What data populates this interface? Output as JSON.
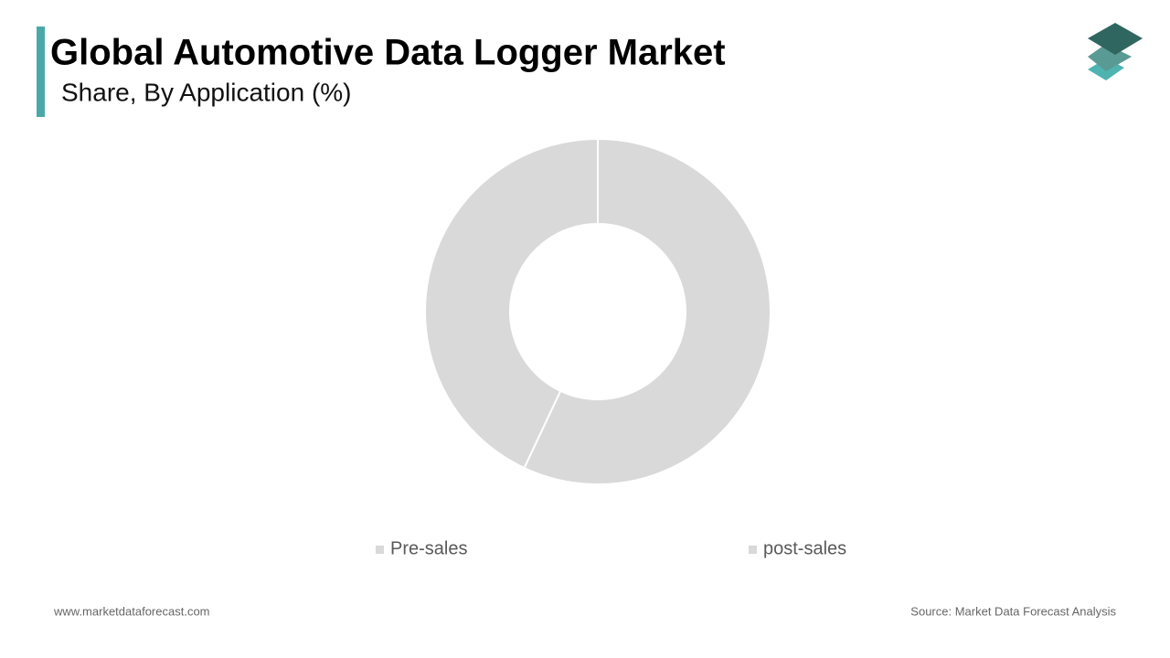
{
  "chart_data": {
    "type": "donut",
    "title": "Global Automotive Data Logger Market",
    "subtitle": "Share, By Application (%)",
    "categories": [
      "Pre-sales",
      "post-sales"
    ],
    "values": [
      57,
      43
    ],
    "colors": [
      "#d9d9d9",
      "#d9d9d9"
    ],
    "legend": "bottom",
    "footer_left": "www.marketdataforecast.com",
    "footer_right": "Source: Market Data Forecast Analysis"
  }
}
